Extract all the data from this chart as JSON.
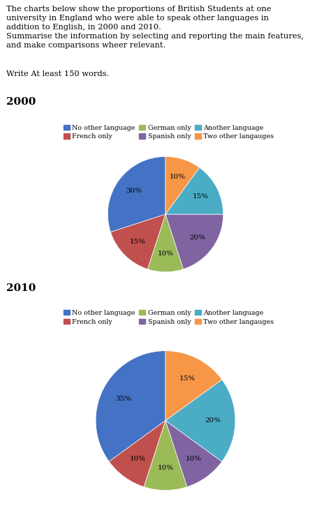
{
  "title_line1": "The charts below show the proportions of British Students at one",
  "title_line2": "university in England who were able to speak other languages in",
  "title_line3": "addition to English, in 2000 and 2010.",
  "title_line4": "Summarise the information by selecting and reporting the main features,",
  "title_line5": "and make comparisons wheer relevant.",
  "subtitle_text": "Write At least 150 words.",
  "year_2000_label": "2000",
  "year_2010_label": "2010",
  "categories": [
    "No other language",
    "French only",
    "German only",
    "Spanish only",
    "Another language",
    "Two other langauges"
  ],
  "colors": [
    "#4472C4",
    "#C0504D",
    "#9BBB59",
    "#8064A2",
    "#4BACC6",
    "#F79646"
  ],
  "pie_2000": [
    30,
    15,
    10,
    20,
    15,
    10
  ],
  "pie_2010": [
    35,
    10,
    10,
    10,
    20,
    15
  ],
  "background_color": "#FFFFFF",
  "text_color": "#000000",
  "font_family": "DejaVu Serif"
}
